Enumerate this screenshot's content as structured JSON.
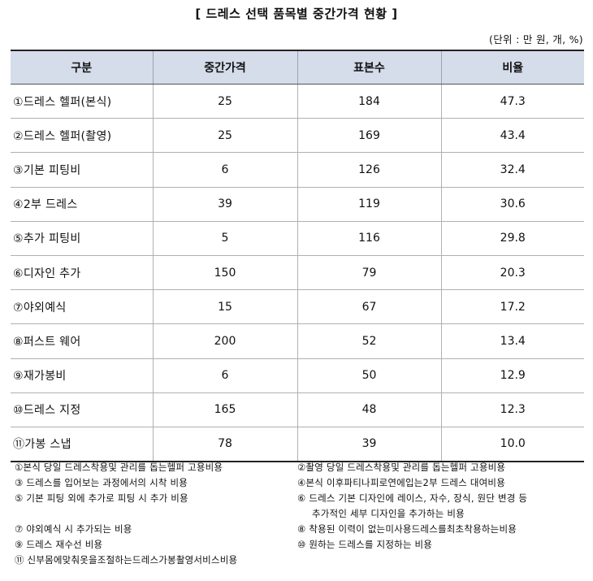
{
  "title": "[ 드레스 선택 품목별 중간가격 현황 ]",
  "unit": "(단위 : 만 원, 개, %)",
  "table": {
    "headers": [
      "구분",
      "중간가격",
      "표본수",
      "비율"
    ],
    "rows": [
      {
        "item": "①드레스 헬퍼(본식)",
        "price": "25",
        "samples": "184",
        "ratio": "47.3"
      },
      {
        "item": "②드레스 헬퍼(촬영)",
        "price": "25",
        "samples": "169",
        "ratio": "43.4"
      },
      {
        "item": "③기본 피팅비",
        "price": "6",
        "samples": "126",
        "ratio": "32.4"
      },
      {
        "item": "④2부 드레스",
        "price": "39",
        "samples": "119",
        "ratio": "30.6"
      },
      {
        "item": "⑤추가 피팅비",
        "price": "5",
        "samples": "116",
        "ratio": "29.8"
      },
      {
        "item": "⑥디자인 추가",
        "price": "150",
        "samples": "79",
        "ratio": "20.3"
      },
      {
        "item": "⑦야외예식",
        "price": "15",
        "samples": "67",
        "ratio": "17.2"
      },
      {
        "item": "⑧퍼스트 웨어",
        "price": "200",
        "samples": "52",
        "ratio": "13.4"
      },
      {
        "item": "⑨재가봉비",
        "price": "6",
        "samples": "50",
        "ratio": "12.9"
      },
      {
        "item": "⑩드레스 지정",
        "price": "165",
        "samples": "48",
        "ratio": "12.3"
      },
      {
        "item": "⑪가봉 스냅",
        "price": "78",
        "samples": "39",
        "ratio": "10.0"
      }
    ]
  },
  "notes": {
    "n1": "①본식 당일 드레스착용및 관리를 돕는헬퍼 고용비용",
    "n2": "②촬영 당일 드레스착용및 관리를 돕는헬퍼 고용비용",
    "n3": "③ 드레스를 입어보는 과정에서의 시착 비용",
    "n4": "④본식 이후파티나피로연에입는2부 드레스 대여비용",
    "n5": "⑤ 기본 피팅 외에 추가로 피팅 시 추가 비용",
    "n6a": "⑥ 드레스 기본 디자인에 레이스, 자수, 장식, 원단 변경 등",
    "n6b": "추가적인 세부 디자인을 추가하는 비용",
    "n7": "⑦ 야외예식 시 추가되는 비용",
    "n8": "⑧ 착용된 이력이 없는미사용드레스를최초착용하는비용",
    "n9": "⑨ 드레스 재수선 비용",
    "n10": "⑩ 원하는 드레스를 지정하는 비용",
    "n11": "⑪ 신부몸에맞춰옷을조절하는드레스가봉촬영서비스비용"
  }
}
